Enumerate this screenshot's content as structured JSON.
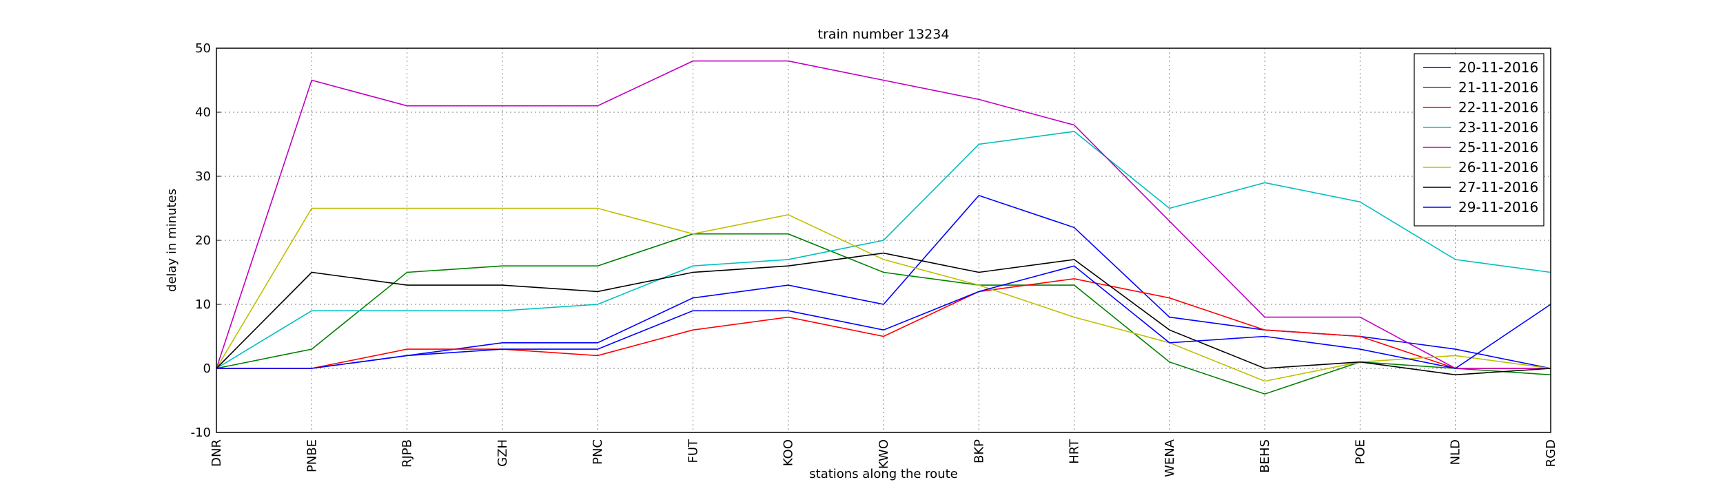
{
  "chart_data": {
    "type": "line",
    "title": "train number 13234",
    "xlabel": "stations along the route",
    "ylabel": "delay in minutes",
    "categories": [
      "DNR",
      "PNBE",
      "RJPB",
      "GZH",
      "PNC",
      "FUT",
      "KOO",
      "KWO",
      "BKP",
      "HRT",
      "WENA",
      "BEHS",
      "POE",
      "NLD",
      "RGD"
    ],
    "series": [
      {
        "name": "20-11-2016",
        "color": "#0000ff",
        "values": [
          0,
          0,
          2,
          4,
          4,
          11,
          13,
          10,
          27,
          22,
          8,
          6,
          5,
          3,
          0
        ]
      },
      {
        "name": "21-11-2016",
        "color": "#008000",
        "values": [
          0,
          3,
          15,
          16,
          16,
          21,
          21,
          15,
          13,
          13,
          1,
          -4,
          1,
          0,
          -1
        ]
      },
      {
        "name": "22-11-2016",
        "color": "#ff0000",
        "values": [
          0,
          0,
          3,
          3,
          2,
          6,
          8,
          5,
          12,
          14,
          11,
          6,
          5,
          0,
          0
        ]
      },
      {
        "name": "23-11-2016",
        "color": "#00bfbf",
        "values": [
          0,
          9,
          9,
          9,
          10,
          16,
          17,
          20,
          35,
          37,
          25,
          29,
          26,
          17,
          15
        ]
      },
      {
        "name": "25-11-2016",
        "color": "#bf00bf",
        "values": [
          0,
          45,
          41,
          41,
          41,
          48,
          48,
          45,
          42,
          38,
          23,
          8,
          8,
          0,
          0
        ]
      },
      {
        "name": "26-11-2016",
        "color": "#bfbf00",
        "values": [
          0,
          25,
          25,
          25,
          25,
          21,
          24,
          17,
          13,
          8,
          4,
          -2,
          1,
          2,
          0
        ]
      },
      {
        "name": "27-11-2016",
        "color": "#000000",
        "values": [
          0,
          15,
          13,
          13,
          12,
          15,
          16,
          18,
          15,
          17,
          6,
          0,
          1,
          -1,
          0
        ]
      },
      {
        "name": "29-11-2016",
        "color": "#0000ff",
        "values": [
          0,
          0,
          2,
          3,
          3,
          9,
          9,
          6,
          12,
          16,
          4,
          5,
          3,
          0,
          10
        ]
      }
    ],
    "ylim": [
      -10,
      50
    ],
    "yticks": [
      -10,
      0,
      10,
      20,
      30,
      40,
      50
    ],
    "grid": true,
    "legend": "upper right"
  }
}
